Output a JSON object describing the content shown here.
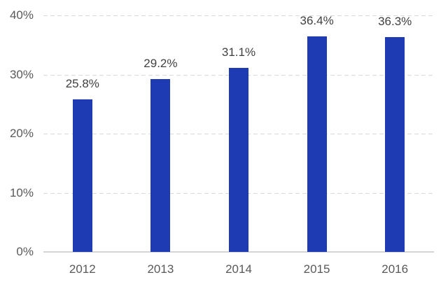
{
  "chart_data": {
    "type": "bar",
    "title": "",
    "xlabel": "",
    "ylabel": "",
    "categories": [
      "2012",
      "2013",
      "2014",
      "2015",
      "2016"
    ],
    "values": [
      25.8,
      29.2,
      31.1,
      36.4,
      36.3
    ],
    "value_labels": [
      "25.8%",
      "29.2%",
      "31.1%",
      "36.4%",
      "36.3%"
    ],
    "ylim": [
      0,
      40
    ],
    "y_ticks": [
      {
        "value": 0,
        "label": "0%"
      },
      {
        "value": 10,
        "label": "10%"
      },
      {
        "value": 20,
        "label": "20%"
      },
      {
        "value": 30,
        "label": "30%"
      },
      {
        "value": 40,
        "label": "40%"
      }
    ],
    "grid": "horizontal-dashed",
    "legend": "none",
    "colors": {
      "bar": "#1e3bb3",
      "gridline": "#d9d9d9",
      "axis_line": "#d4d4d4",
      "tick_label": "#595959",
      "value_label": "#404040",
      "background": "#ffffff"
    }
  }
}
